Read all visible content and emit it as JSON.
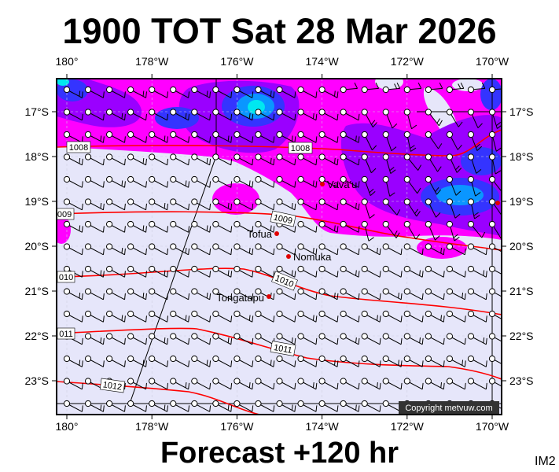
{
  "header": {
    "title": "1900 TOT Sat 28 Mar 2026"
  },
  "footer": {
    "subtitle": "Forecast +120 hr",
    "image_id_label": "IM2",
    "copyright": "Copyright metvuw.com"
  },
  "axes": {
    "lon_labels": [
      "180°",
      "178°W",
      "176°W",
      "174°W",
      "172°W",
      "170°W"
    ],
    "lat_labels": [
      "17°S",
      "18°S",
      "19°S",
      "20°S",
      "21°S",
      "22°S",
      "23°S"
    ]
  },
  "places": [
    {
      "name": "Vava'u"
    },
    {
      "name": "Tofua"
    },
    {
      "name": "Nomuka"
    },
    {
      "name": "Tongatapu"
    }
  ],
  "isobars": [
    {
      "value": "1008",
      "edge_label": "1008"
    },
    {
      "value": "1009",
      "edge_label": "009"
    },
    {
      "value": "1010",
      "edge_label": "010"
    },
    {
      "value": "1011",
      "edge_label": "011"
    },
    {
      "value": "1012",
      "edge_label": "1012"
    }
  ],
  "colors": {
    "background": "#e6e6fa",
    "rain_light": "#ff00ff",
    "rain_medium": "#9a00ff",
    "rain_heavy": "#3434ff",
    "rain_very_heavy": "#0a96ff",
    "rain_extreme": "#00e8f0",
    "isobar": "#ff0000",
    "place_dot": "#e00000"
  }
}
